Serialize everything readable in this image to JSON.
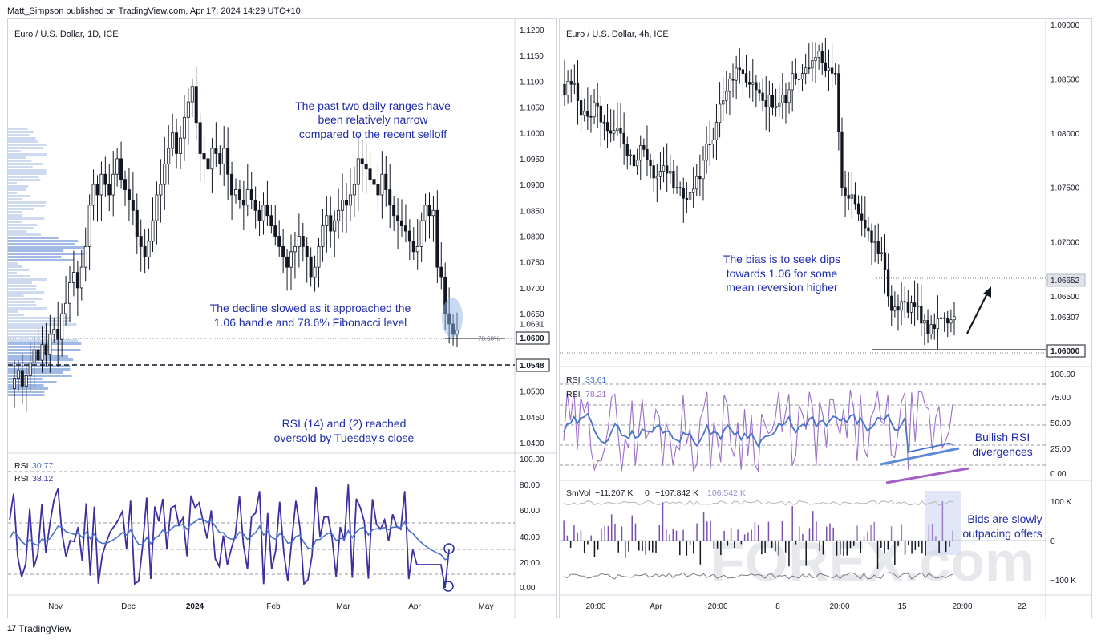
{
  "header": {
    "publisher": "Matt_Simpson published on TradingView.com, Apr 17, 2024 14:29 UTC+10"
  },
  "footer": {
    "brand": "TradingView",
    "logo_text": "17"
  },
  "left_chart": {
    "title": "Euro / U.S. Dollar, 1D, ICE",
    "price_ticks": [
      "1.1200",
      "1.1150",
      "1.1100",
      "1.1050",
      "1.1000",
      "1.0950",
      "1.0900",
      "1.0850",
      "1.0800",
      "1.0750",
      "1.0700",
      "1.0650",
      "1.0631",
      "1.0600",
      "1.0548",
      "1.0500",
      "1.0450",
      "1.0400"
    ],
    "price_badges": {
      "level_1": "1.0600",
      "level_2": "1.0548"
    },
    "fib_label": "78.60%",
    "time_labels": [
      "Nov",
      "Dec",
      "2024",
      "Feb",
      "Mar",
      "Apr",
      "May"
    ],
    "annotations": {
      "ranges_line1": "The past two daily ranges have",
      "ranges_line2": "been relatively narrow",
      "ranges_line3": "compared to the recent selloff",
      "decline_line1": "The decline slowed as it approached the",
      "decline_line2": "1.06 handle and 78.6% Fibonacci level",
      "rsi_line1": "RSI (14) and (2) reached",
      "rsi_line2": "oversold by Tuesday's close"
    },
    "rsi_legend": {
      "label_a": "RSI",
      "value_a": "30.77",
      "label_b": "RSI",
      "value_b": "38.12"
    },
    "rsi_ticks": [
      "100.00",
      "80.00",
      "60.00",
      "40.00",
      "20.00",
      "0.00"
    ]
  },
  "right_chart": {
    "title": "Euro / U.S. Dollar, 4h, ICE",
    "price_ticks": [
      "1.09000",
      "1.08500",
      "1.08000",
      "1.07500",
      "1.07000",
      "1.06652",
      "1.06500",
      "1.06307",
      "1.06000"
    ],
    "price_badges": {
      "level_1": "1.06652",
      "level_2": "1.06000"
    },
    "time_labels": [
      "20:00",
      "Apr",
      "20:00",
      "8",
      "20:00",
      "15",
      "20:00",
      "22"
    ],
    "annotations": {
      "bias_line1": "The bias is to seek dips",
      "bias_line2": "towards 1.06 for some",
      "bias_line3": "mean reversion higher",
      "div_line1": "Bullish RSI",
      "div_line2": "divergences",
      "bids_line1": "Bids are slowly",
      "bids_line2": "outpacing offers"
    },
    "rsi_legend": {
      "label_a": "RSI",
      "value_a": "33.61",
      "label_b": "RSI",
      "value_b": "78.21"
    },
    "rsi_ticks": [
      "100.00",
      "75.00",
      "50.00",
      "25.00",
      "0.00"
    ],
    "vol_legend": {
      "name": "SmVol",
      "v1": "−11.207 K",
      "v2": "0",
      "v3": "−107.842 K",
      "v4": "106.542 K"
    },
    "vol_ticks": [
      "100 K",
      "0",
      "−100 K"
    ],
    "watermark": "FOREX.com"
  },
  "colors": {
    "accent": "#1e2ba8",
    "rsi_fast": "#3d2fa0",
    "rsi_slow": "#4a72c8",
    "rsi_purple": "#9b6ec8",
    "vol_bar": "#7b4fb0"
  },
  "chart_data": [
    {
      "type": "candlestick",
      "title": "Euro / U.S. Dollar, 1D, ICE",
      "ylim": [
        1.038,
        1.122
      ],
      "y_ticks": [
        1.12,
        1.115,
        1.11,
        1.105,
        1.1,
        1.095,
        1.09,
        1.085,
        1.08,
        1.075,
        1.07,
        1.065,
        1.06,
        1.055,
        1.05,
        1.045,
        1.04
      ],
      "x_labels": [
        "Nov",
        "Dec",
        "2024",
        "Feb",
        "Mar",
        "Apr",
        "May"
      ],
      "close": [
        1.0525,
        1.054,
        1.051,
        1.053,
        1.0555,
        1.058,
        1.056,
        1.059,
        1.057,
        1.061,
        1.062,
        1.06,
        1.065,
        1.067,
        1.071,
        1.073,
        1.07,
        1.074,
        1.078,
        1.086,
        1.09,
        1.088,
        1.092,
        1.09,
        1.088,
        1.092,
        1.095,
        1.091,
        1.089,
        1.087,
        1.085,
        1.08,
        1.078,
        1.076,
        1.079,
        1.083,
        1.088,
        1.09,
        1.094,
        1.097,
        1.1,
        1.096,
        1.099,
        1.103,
        1.106,
        1.109,
        1.102,
        1.096,
        1.095,
        1.093,
        1.097,
        1.096,
        1.094,
        1.097,
        1.092,
        1.088,
        1.089,
        1.087,
        1.086,
        1.089,
        1.087,
        1.085,
        1.083,
        1.086,
        1.084,
        1.082,
        1.08,
        1.078,
        1.076,
        1.074,
        1.077,
        1.078,
        1.08,
        1.078,
        1.076,
        1.072,
        1.074,
        1.078,
        1.082,
        1.084,
        1.081,
        1.083,
        1.085,
        1.087,
        1.086,
        1.088,
        1.09,
        1.095,
        1.094,
        1.093,
        1.091,
        1.09,
        1.088,
        1.092,
        1.089,
        1.086,
        1.084,
        1.083,
        1.082,
        1.081,
        1.079,
        1.077,
        1.078,
        1.083,
        1.086,
        1.084,
        1.085,
        1.074,
        1.072,
        1.065,
        1.063,
        1.061,
        1.0618
      ],
      "volume_profile": "horizontal histogram on left side"
    },
    {
      "type": "line",
      "title": "RSI (1D)",
      "series": [
        {
          "name": "RSI",
          "last": 30.77
        },
        {
          "name": "RSI",
          "last": 38.12
        }
      ],
      "ylim": [
        0,
        100
      ],
      "y_ticks": [
        100,
        80,
        60,
        40,
        20,
        0
      ]
    },
    {
      "type": "candlestick",
      "title": "Euro / U.S. Dollar, 4h, ICE",
      "ylim": [
        1.0585,
        1.0905
      ],
      "y_ticks": [
        1.09,
        1.085,
        1.08,
        1.075,
        1.07,
        1.065,
        1.06
      ],
      "x_labels": [
        "20:00",
        "Apr",
        "20:00",
        "8",
        "20:00",
        "15",
        "20:00",
        "22"
      ],
      "close": [
        1.0835,
        1.0845,
        1.083,
        1.082,
        1.0815,
        1.0825,
        1.081,
        1.08,
        1.0805,
        1.079,
        1.078,
        1.0775,
        1.0785,
        1.077,
        1.076,
        1.077,
        1.0765,
        1.075,
        1.074,
        1.0745,
        1.076,
        1.0775,
        1.079,
        1.081,
        1.083,
        1.085,
        1.086,
        1.0855,
        1.0845,
        1.084,
        1.083,
        1.0835,
        1.0825,
        1.0835,
        1.084,
        1.085,
        1.0855,
        1.086,
        1.087,
        1.0865,
        1.086,
        1.0855,
        1.075,
        1.074,
        1.0735,
        1.072,
        1.071,
        1.07,
        1.069,
        1.065,
        1.064,
        1.0645,
        1.0635,
        1.064,
        1.0625,
        1.0615,
        1.062,
        1.063,
        1.0625,
        1.0631
      ],
      "horizontal_levels": [
        1.06652,
        1.06
      ]
    },
    {
      "type": "line",
      "title": "RSI (4h)",
      "series": [
        {
          "name": "RSI",
          "last": 33.61
        },
        {
          "name": "RSI",
          "last": 78.21
        }
      ],
      "ylim": [
        0,
        100
      ],
      "y_ticks": [
        100,
        75,
        50,
        25,
        0
      ]
    },
    {
      "type": "bar",
      "title": "SmVol",
      "series": [
        {
          "name": "SmVol",
          "last": -11.207
        }
      ],
      "ylim": [
        -120,
        130
      ],
      "y_ticks": [
        100,
        0,
        -100
      ]
    }
  ]
}
